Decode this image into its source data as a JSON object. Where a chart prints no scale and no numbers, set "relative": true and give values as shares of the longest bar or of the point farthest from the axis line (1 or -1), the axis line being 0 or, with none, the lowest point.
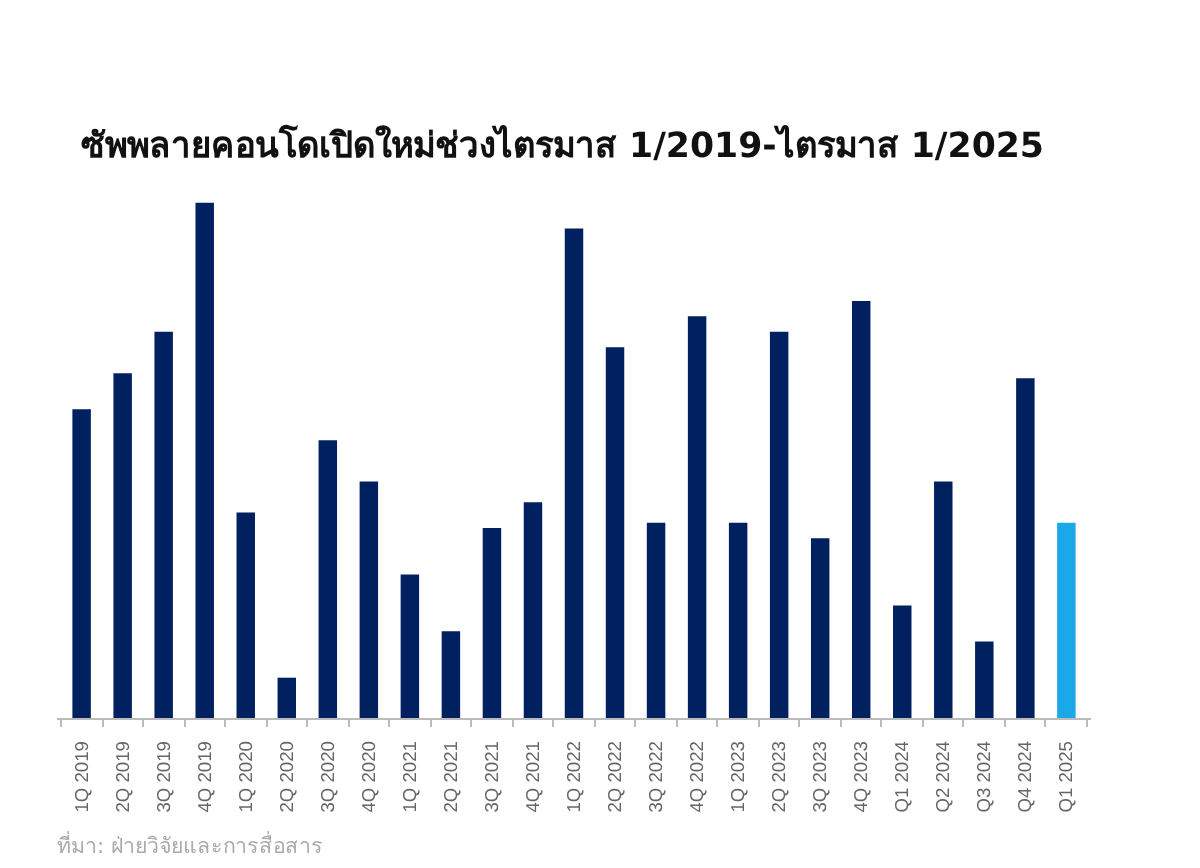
{
  "chart_data": {
    "type": "bar",
    "title": "ซัพพลายคอนโดเปิดใหม่ช่วงไตรมาส 1/2019-ไตรมาส 1/2025",
    "relative": true,
    "categories": [
      "1Q 2019",
      "2Q 2019",
      "3Q 2019",
      "4Q 2019",
      "1Q 2020",
      "2Q 2020",
      "3Q 2020",
      "4Q 2020",
      "1Q 2021",
      "2Q 2021",
      "3Q 2021",
      "4Q 2021",
      "1Q 2022",
      "2Q 2022",
      "3Q 2022",
      "4Q 2022",
      "1Q 2023",
      "2Q 2023",
      "3Q 2023",
      "4Q 2023",
      "Q1 2024",
      "Q2 2024",
      "Q3 2024",
      "Q4 2024",
      "Q1 2025"
    ],
    "values": [
      0.6,
      0.67,
      0.75,
      1,
      0.4,
      0.08,
      0.54,
      0.46,
      0.28,
      0.17,
      0.37,
      0.42,
      0.95,
      0.72,
      0.38,
      0.78,
      0.38,
      0.75,
      0.35,
      0.81,
      0.22,
      0.46,
      0.15,
      0.66,
      0.38
    ],
    "colors": [
      "#002060",
      "#002060",
      "#002060",
      "#002060",
      "#002060",
      "#002060",
      "#002060",
      "#002060",
      "#002060",
      "#002060",
      "#002060",
      "#002060",
      "#002060",
      "#002060",
      "#002060",
      "#002060",
      "#002060",
      "#002060",
      "#002060",
      "#002060",
      "#002060",
      "#002060",
      "#002060",
      "#002060",
      "#1ba8e8"
    ],
    "annotations": [
      "ที่มา: ฝ่ายวิจัยและการสื่อสาร"
    ],
    "grid": false
  }
}
